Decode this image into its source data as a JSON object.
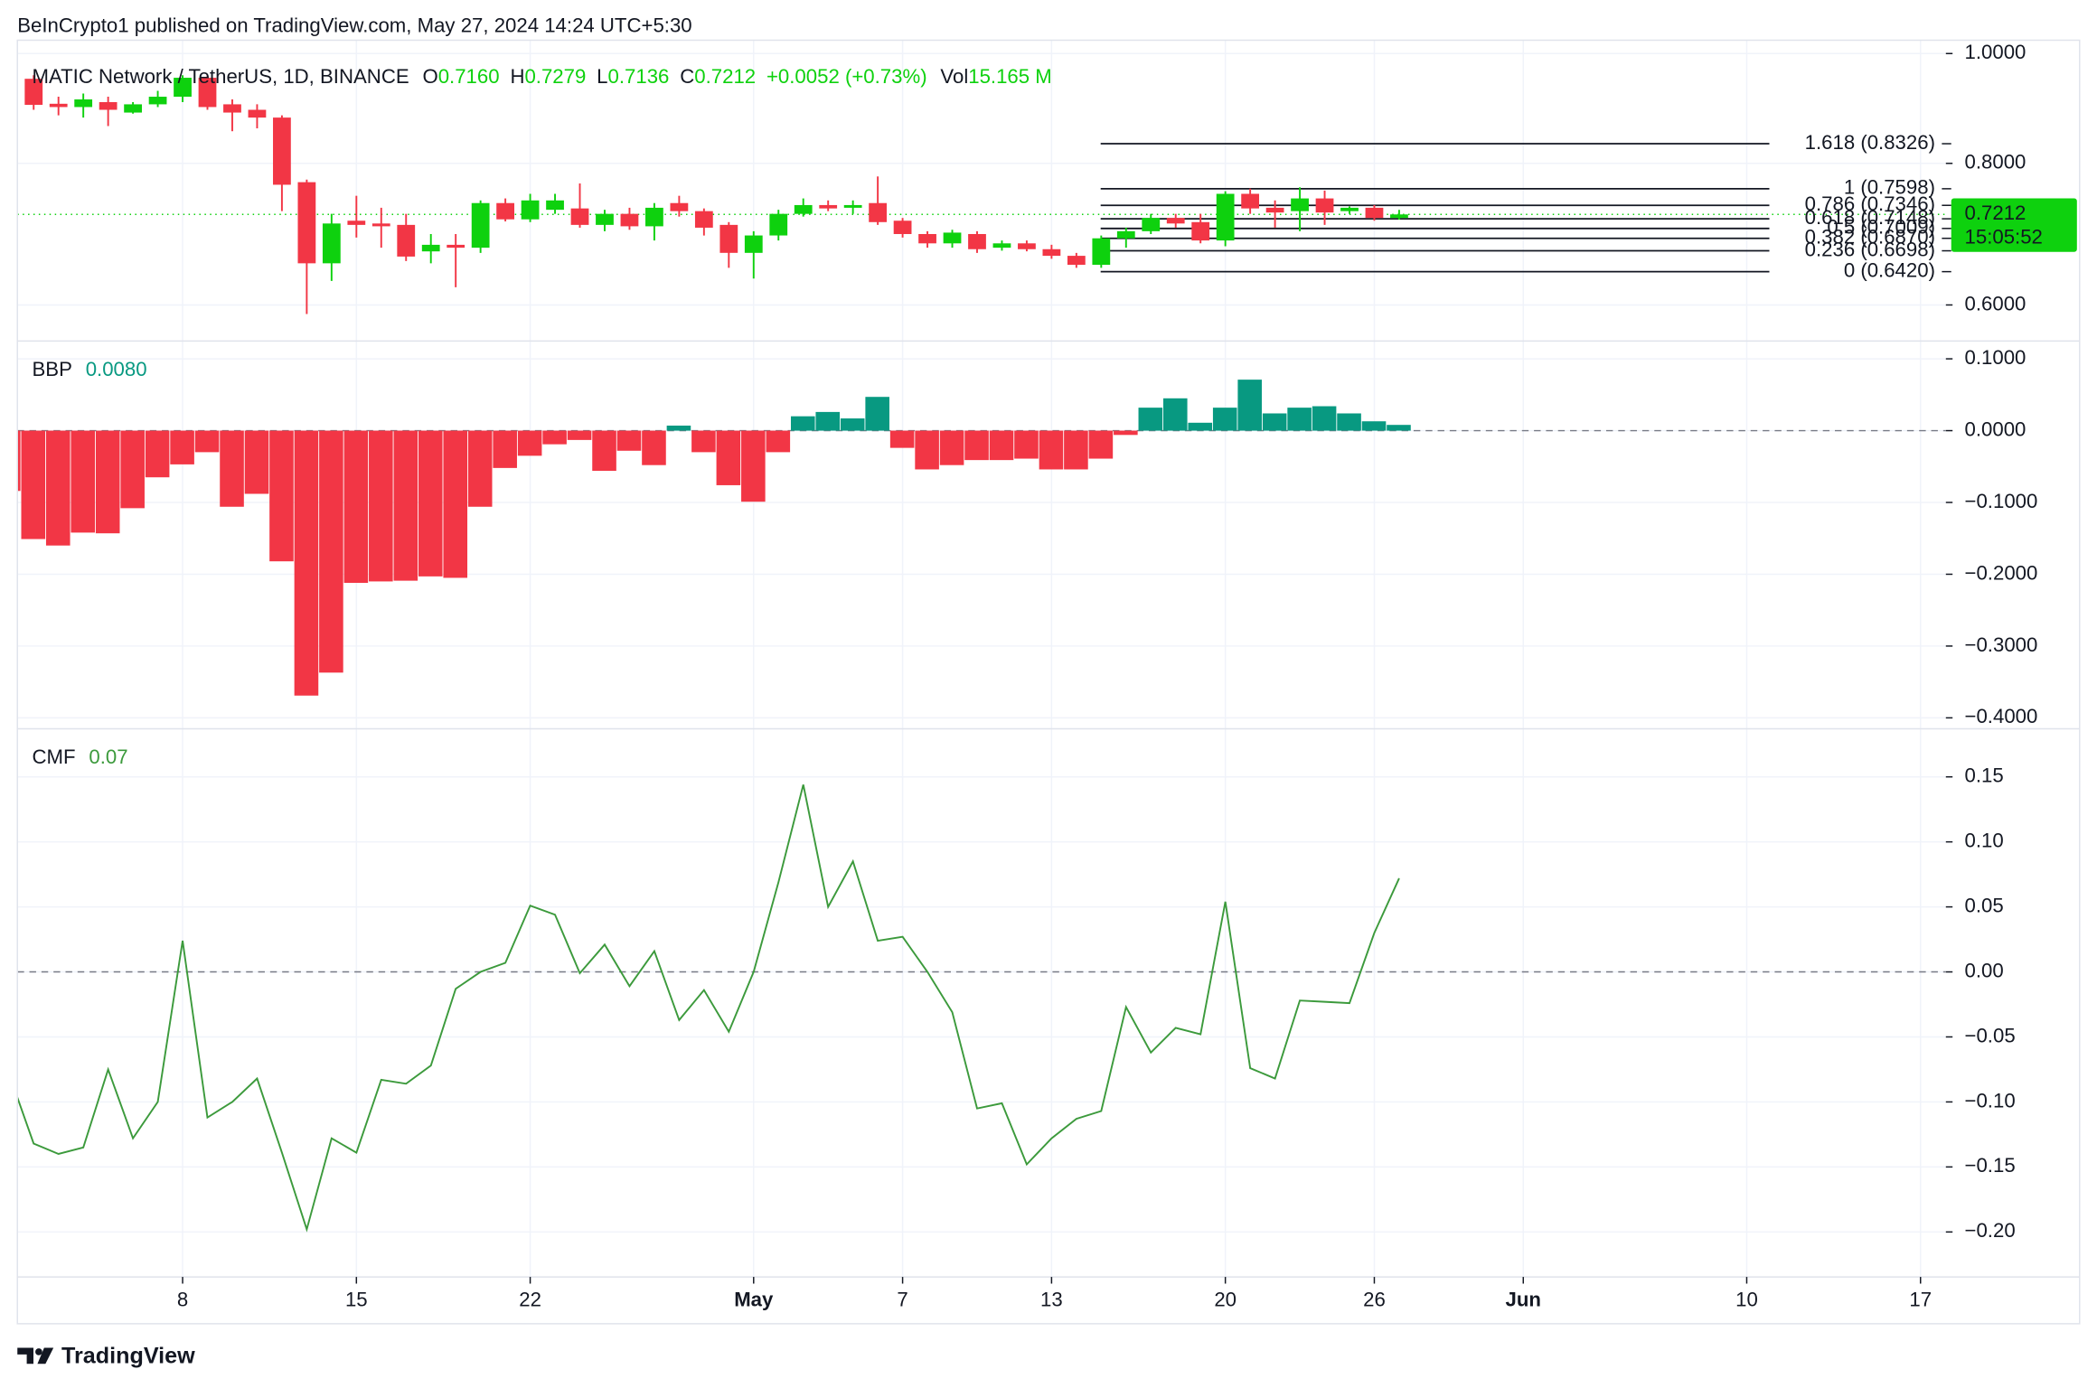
{
  "header": {
    "text": "BeInCrypto1 published on TradingView.com, May 27, 2024 14:24 UTC+5:30"
  },
  "footer": {
    "brand": "TradingView"
  },
  "chart_data": [
    {
      "type": "candlestick",
      "title": "MATIC Network / TetherUS, 1D, BINANCE",
      "legend": [
        {
          "key": "O",
          "value": "0.7160"
        },
        {
          "key": "H",
          "value": "0.7279"
        },
        {
          "key": "L",
          "value": "0.7136"
        },
        {
          "key": "C",
          "value": "0.7212"
        }
      ],
      "change": "+0.0052 (+0.73%)",
      "volume": {
        "key": "Vol",
        "value": "15.165 M"
      },
      "last_price_label": "0.7212",
      "countdown": "15:05:52",
      "up_color": "#0ed10e",
      "down_color": "#f23645",
      "log_scale": true,
      "grid": true,
      "xlim": [
        "2024-04-01",
        "2024-06-18"
      ],
      "ylim": [
        0.5576,
        1.0275
      ],
      "yticks": [
        {
          "value": 1,
          "label": "1.0000"
        },
        {
          "value": 0.8,
          "label": "0.8000"
        },
        {
          "value": 0.6,
          "label": "0.6000"
        }
      ],
      "fib_levels": [
        {
          "label": "1.618 (0.8326)",
          "price": 0.8326
        },
        {
          "label": "1 (0.7598)",
          "price": 0.7598
        },
        {
          "label": "0.786 (0.7346)",
          "price": 0.7346
        },
        {
          "label": "0.618 (0.7148)",
          "price": 0.7148
        },
        {
          "label": "0.5 (0.7009)",
          "price": 0.7009
        },
        {
          "label": "0.382 (0.6870)",
          "price": 0.687
        },
        {
          "label": "0.236 (0.6698)",
          "price": 0.6698
        },
        {
          "label": "0 (0.6420)",
          "price": 0.642
        }
      ],
      "x": [
        "2024-04-02",
        "2024-04-03",
        "2024-04-04",
        "2024-04-05",
        "2024-04-06",
        "2024-04-07",
        "2024-04-08",
        "2024-04-09",
        "2024-04-10",
        "2024-04-11",
        "2024-04-12",
        "2024-04-13",
        "2024-04-14",
        "2024-04-15",
        "2024-04-16",
        "2024-04-17",
        "2024-04-18",
        "2024-04-19",
        "2024-04-20",
        "2024-04-21",
        "2024-04-22",
        "2024-04-23",
        "2024-04-24",
        "2024-04-25",
        "2024-04-26",
        "2024-04-27",
        "2024-04-28",
        "2024-04-29",
        "2024-04-30",
        "2024-05-01",
        "2024-05-02",
        "2024-05-03",
        "2024-05-04",
        "2024-05-05",
        "2024-05-06",
        "2024-05-07",
        "2024-05-08",
        "2024-05-09",
        "2024-05-10",
        "2024-05-11",
        "2024-05-12",
        "2024-05-13",
        "2024-05-14",
        "2024-05-15",
        "2024-05-16",
        "2024-05-17",
        "2024-05-18",
        "2024-05-19",
        "2024-05-20",
        "2024-05-21",
        "2024-05-22",
        "2024-05-23",
        "2024-05-24",
        "2024-05-25",
        "2024-05-26",
        "2024-05-27"
      ],
      "open": [
        0.95,
        0.903,
        0.897,
        0.906,
        0.887,
        0.902,
        0.916,
        0.952,
        0.902,
        0.892,
        0.878,
        0.77,
        0.653,
        0.712,
        0.708,
        0.706,
        0.669,
        0.678,
        0.674,
        0.738,
        0.714,
        0.728,
        0.73,
        0.706,
        0.722,
        0.704,
        0.738,
        0.726,
        0.706,
        0.667,
        0.691,
        0.722,
        0.735,
        0.731,
        0.738,
        0.712,
        0.693,
        0.68,
        0.693,
        0.674,
        0.68,
        0.672,
        0.663,
        0.651,
        0.687,
        0.697,
        0.716,
        0.71,
        0.684,
        0.752,
        0.731,
        0.726,
        0.745,
        0.726,
        0.731,
        0.716
      ],
      "high": [
        0.957,
        0.916,
        0.922,
        0.916,
        0.906,
        0.927,
        0.957,
        0.957,
        0.911,
        0.902,
        0.882,
        0.774,
        0.722,
        0.749,
        0.731,
        0.722,
        0.693,
        0.693,
        0.742,
        0.745,
        0.752,
        0.752,
        0.768,
        0.728,
        0.731,
        0.738,
        0.749,
        0.73,
        0.71,
        0.697,
        0.728,
        0.745,
        0.742,
        0.742,
        0.779,
        0.716,
        0.697,
        0.699,
        0.697,
        0.684,
        0.684,
        0.678,
        0.667,
        0.691,
        0.702,
        0.722,
        0.722,
        0.722,
        0.756,
        0.76,
        0.742,
        0.762,
        0.757,
        0.733,
        0.735,
        0.7279
      ],
      "low": [
        0.892,
        0.882,
        0.878,
        0.863,
        0.885,
        0.897,
        0.906,
        0.892,
        0.854,
        0.859,
        0.726,
        0.589,
        0.63,
        0.688,
        0.674,
        0.656,
        0.653,
        0.622,
        0.667,
        0.711,
        0.71,
        0.722,
        0.702,
        0.697,
        0.699,
        0.684,
        0.718,
        0.691,
        0.647,
        0.633,
        0.684,
        0.718,
        0.726,
        0.722,
        0.706,
        0.688,
        0.674,
        0.674,
        0.667,
        0.67,
        0.669,
        0.659,
        0.647,
        0.647,
        0.674,
        0.693,
        0.702,
        0.68,
        0.676,
        0.722,
        0.702,
        0.697,
        0.706,
        0.722,
        0.712,
        0.7136
      ],
      "close": [
        0.901,
        0.897,
        0.911,
        0.892,
        0.902,
        0.916,
        0.952,
        0.897,
        0.887,
        0.878,
        0.766,
        0.653,
        0.708,
        0.706,
        0.704,
        0.662,
        0.678,
        0.674,
        0.738,
        0.714,
        0.742,
        0.742,
        0.706,
        0.722,
        0.704,
        0.731,
        0.726,
        0.702,
        0.667,
        0.691,
        0.722,
        0.735,
        0.73,
        0.735,
        0.71,
        0.693,
        0.68,
        0.695,
        0.672,
        0.68,
        0.672,
        0.663,
        0.651,
        0.687,
        0.697,
        0.716,
        0.708,
        0.684,
        0.752,
        0.73,
        0.724,
        0.745,
        0.724,
        0.731,
        0.716,
        0.7212
      ]
    },
    {
      "type": "bar",
      "title": "BBP",
      "legend_value": "0.0080",
      "up_color": "#089981",
      "down_color": "#f23645",
      "zero_line": true,
      "grid": true,
      "xlim": [
        "2024-04-01",
        "2024-06-18"
      ],
      "ylim": [
        -0.4152,
        0.1248
      ],
      "yticks": [
        {
          "value": 0.1,
          "label": "0.1000"
        },
        {
          "value": 0,
          "label": "0.0000"
        },
        {
          "value": -0.1,
          "label": "−0.1000"
        },
        {
          "value": -0.2,
          "label": "−0.2000"
        },
        {
          "value": -0.3,
          "label": "−0.3000"
        },
        {
          "value": -0.4,
          "label": "−0.4000"
        }
      ],
      "x": [
        "2024-04-01",
        "2024-04-02",
        "2024-04-03",
        "2024-04-04",
        "2024-04-05",
        "2024-04-06",
        "2024-04-07",
        "2024-04-08",
        "2024-04-09",
        "2024-04-10",
        "2024-04-11",
        "2024-04-12",
        "2024-04-13",
        "2024-04-14",
        "2024-04-15",
        "2024-04-16",
        "2024-04-17",
        "2024-04-18",
        "2024-04-19",
        "2024-04-20",
        "2024-04-21",
        "2024-04-22",
        "2024-04-23",
        "2024-04-24",
        "2024-04-25",
        "2024-04-26",
        "2024-04-27",
        "2024-04-28",
        "2024-04-29",
        "2024-04-30",
        "2024-05-01",
        "2024-05-02",
        "2024-05-03",
        "2024-05-04",
        "2024-05-05",
        "2024-05-06",
        "2024-05-07",
        "2024-05-08",
        "2024-05-09",
        "2024-05-10",
        "2024-05-11",
        "2024-05-12",
        "2024-05-13",
        "2024-05-14",
        "2024-05-15",
        "2024-05-16",
        "2024-05-17",
        "2024-05-18",
        "2024-05-19",
        "2024-05-20",
        "2024-05-21",
        "2024-05-22",
        "2024-05-23",
        "2024-05-24",
        "2024-05-25",
        "2024-05-26",
        "2024-05-27"
      ],
      "values": [
        -0.084,
        -0.151,
        -0.16,
        -0.142,
        -0.143,
        -0.108,
        -0.065,
        -0.047,
        -0.03,
        -0.106,
        -0.088,
        -0.182,
        -0.369,
        -0.337,
        -0.212,
        -0.21,
        -0.209,
        -0.203,
        -0.205,
        -0.106,
        -0.052,
        -0.035,
        -0.019,
        -0.013,
        -0.056,
        -0.028,
        -0.048,
        0.007,
        -0.03,
        -0.076,
        -0.099,
        -0.03,
        0.02,
        0.026,
        0.017,
        0.047,
        -0.024,
        -0.054,
        -0.048,
        -0.041,
        -0.041,
        -0.039,
        -0.054,
        -0.054,
        -0.039,
        -0.006,
        0.032,
        0.045,
        0.011,
        0.032,
        0.071,
        0.024,
        0.032,
        0.034,
        0.024,
        0.013,
        0.008
      ]
    },
    {
      "type": "line",
      "title": "CMF",
      "legend_value": "0.07",
      "color": "#3c9a3c",
      "zero_line": true,
      "grid": true,
      "xlim": [
        "2024-04-01",
        "2024-06-18"
      ],
      "ylim": [
        -0.2346,
        0.187
      ],
      "yticks": [
        0.15,
        {
          "value": 0.1,
          "label": "0.10"
        },
        0.05,
        {
          "value": 0,
          "label": "0.00"
        },
        {
          "value": -0.05,
          "label": "−0.05"
        },
        {
          "value": -0.1,
          "label": "−0.10"
        },
        {
          "value": -0.15,
          "label": "−0.15"
        },
        {
          "value": -0.2,
          "label": "−0.20"
        }
      ],
      "xticks": [
        {
          "value": "2024-04-08",
          "label": "8"
        },
        {
          "value": "2024-04-15",
          "label": "15"
        },
        {
          "value": "2024-04-22",
          "label": "22"
        },
        {
          "value": "2024-05-01",
          "label": "May"
        },
        {
          "value": "2024-05-07",
          "label": "7"
        },
        {
          "value": "2024-05-13",
          "label": "13"
        },
        {
          "value": "2024-05-20",
          "label": "20"
        },
        {
          "value": "2024-05-26",
          "label": "26"
        },
        {
          "value": "2024-06-01",
          "label": "Jun"
        },
        {
          "value": "2024-06-10",
          "label": "10"
        },
        {
          "value": "2024-06-17",
          "label": "17"
        }
      ],
      "x": [
        "2024-04-01",
        "2024-04-02",
        "2024-04-03",
        "2024-04-04",
        "2024-04-05",
        "2024-04-06",
        "2024-04-07",
        "2024-04-08",
        "2024-04-09",
        "2024-04-10",
        "2024-04-11",
        "2024-04-12",
        "2024-04-13",
        "2024-04-14",
        "2024-04-15",
        "2024-04-16",
        "2024-04-17",
        "2024-04-18",
        "2024-04-19",
        "2024-04-20",
        "2024-04-21",
        "2024-04-22",
        "2024-04-23",
        "2024-04-24",
        "2024-04-25",
        "2024-04-26",
        "2024-04-27",
        "2024-04-28",
        "2024-04-29",
        "2024-04-30",
        "2024-05-01",
        "2024-05-02",
        "2024-05-03",
        "2024-05-04",
        "2024-05-05",
        "2024-05-06",
        "2024-05-07",
        "2024-05-08",
        "2024-05-09",
        "2024-05-10",
        "2024-05-11",
        "2024-05-12",
        "2024-05-13",
        "2024-05-14",
        "2024-05-15",
        "2024-05-16",
        "2024-05-17",
        "2024-05-18",
        "2024-05-19",
        "2024-05-20",
        "2024-05-21",
        "2024-05-22",
        "2024-05-23",
        "2024-05-24",
        "2024-05-25",
        "2024-05-26",
        "2024-05-27"
      ],
      "values": [
        -0.078,
        -0.132,
        -0.14,
        -0.135,
        -0.075,
        -0.128,
        -0.1,
        0.024,
        -0.112,
        -0.1,
        -0.082,
        -0.139,
        -0.198,
        -0.128,
        -0.139,
        -0.083,
        -0.086,
        -0.072,
        -0.013,
        0,
        0.007,
        0.051,
        0.044,
        -0.001,
        0.021,
        -0.011,
        0.016,
        -0.037,
        -0.014,
        -0.046,
        0,
        0.069,
        0.144,
        0.05,
        0.085,
        0.024,
        0.027,
        0,
        -0.031,
        -0.105,
        -0.101,
        -0.148,
        -0.128,
        -0.113,
        -0.107,
        -0.027,
        -0.062,
        -0.043,
        -0.048,
        0.054,
        -0.074,
        -0.082,
        -0.022,
        -0.023,
        -0.024,
        0.03,
        0.072
      ]
    }
  ]
}
